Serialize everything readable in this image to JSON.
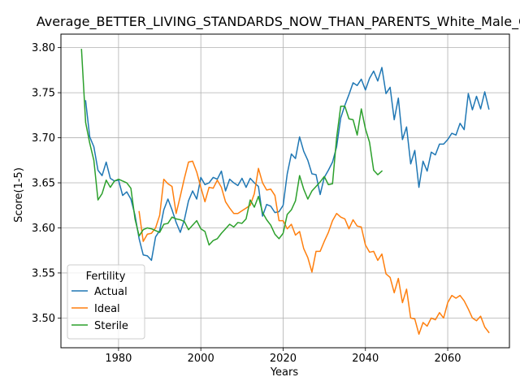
{
  "chart_data": {
    "type": "line",
    "title": "Average_BETTER_LIVING_STANDARDS_NOW_THAN_PARENTS_White_Male_C",
    "xlabel": "Years",
    "ylabel": "Score(1-5)",
    "xlim": [
      1966,
      2075
    ],
    "ylim": [
      3.467,
      3.815
    ],
    "x_ticks": [
      1980,
      2000,
      2020,
      2040,
      2060
    ],
    "x_tick_labels": [
      "1980",
      "2000",
      "2020",
      "2040",
      "2060"
    ],
    "y_ticks": [
      3.5,
      3.55,
      3.6,
      3.65,
      3.7,
      3.75,
      3.8
    ],
    "y_tick_labels": [
      "3.50",
      "3.55",
      "3.60",
      "3.65",
      "3.70",
      "3.75",
      "3.80"
    ],
    "grid": true,
    "legend": {
      "title": "Fertility",
      "placement": "lower-left"
    },
    "series": [
      {
        "name": "Actual",
        "color": "#1f77b4",
        "x": [
          1972,
          1973,
          1974,
          1975,
          1976,
          1977,
          1978,
          1979,
          1980,
          1981,
          1982,
          1983,
          1984,
          1985,
          1986,
          1987,
          1988,
          1989,
          1990,
          1991,
          1992,
          1993,
          1994,
          1995,
          1996,
          1997,
          1998,
          1999,
          2000,
          2001,
          2002,
          2003,
          2004,
          2005,
          2006,
          2007,
          2008,
          2009,
          2010,
          2011,
          2012,
          2013,
          2014,
          2015,
          2016,
          2017,
          2018,
          2019,
          2020,
          2021,
          2022,
          2023,
          2024,
          2025,
          2026,
          2027,
          2028,
          2029,
          2030,
          2031,
          2032,
          2033,
          2034,
          2035,
          2036,
          2037,
          2038,
          2039,
          2040,
          2041,
          2042,
          2043,
          2044,
          2045,
          2046,
          2047,
          2048,
          2049,
          2050,
          2051,
          2052,
          2053,
          2054,
          2055,
          2056,
          2057,
          2058,
          2059,
          2060,
          2061,
          2062,
          2063,
          2064,
          2065,
          2066,
          2067,
          2068,
          2069,
          2070
        ],
        "values": [
          3.741,
          3.701,
          3.69,
          3.664,
          3.658,
          3.673,
          3.655,
          3.652,
          3.653,
          3.636,
          3.64,
          3.632,
          3.614,
          3.588,
          3.57,
          3.569,
          3.564,
          3.59,
          3.597,
          3.62,
          3.632,
          3.62,
          3.606,
          3.595,
          3.609,
          3.63,
          3.641,
          3.632,
          3.656,
          3.648,
          3.65,
          3.656,
          3.654,
          3.663,
          3.641,
          3.654,
          3.65,
          3.647,
          3.655,
          3.645,
          3.655,
          3.65,
          3.646,
          3.613,
          3.626,
          3.624,
          3.617,
          3.618,
          3.625,
          3.66,
          3.682,
          3.677,
          3.701,
          3.685,
          3.675,
          3.66,
          3.659,
          3.637,
          3.656,
          3.664,
          3.673,
          3.69,
          3.722,
          3.736,
          3.748,
          3.761,
          3.758,
          3.765,
          3.753,
          3.766,
          3.774,
          3.763,
          3.778,
          3.749,
          3.756,
          3.72,
          3.744,
          3.698,
          3.712,
          3.671,
          3.686,
          3.645,
          3.674,
          3.663,
          3.684,
          3.681,
          3.693,
          3.693,
          3.698,
          3.705,
          3.703,
          3.716,
          3.709,
          3.749,
          3.731,
          3.746,
          3.732,
          3.751,
          3.732
        ]
      },
      {
        "name": "Ideal",
        "color": "#ff7f0e",
        "x": [
          1985,
          1986,
          1987,
          1988,
          1989,
          1990,
          1991,
          1992,
          1993,
          1994,
          1995,
          1996,
          1997,
          1998,
          1999,
          2000,
          2001,
          2002,
          2003,
          2004,
          2005,
          2006,
          2007,
          2008,
          2009,
          2010,
          2011,
          2012,
          2013,
          2014,
          2015,
          2016,
          2017,
          2018,
          2019,
          2020,
          2021,
          2022,
          2023,
          2024,
          2025,
          2026,
          2027,
          2028,
          2029,
          2030,
          2031,
          2032,
          2033,
          2034,
          2035,
          2036,
          2037,
          2038,
          2039,
          2040,
          2041,
          2042,
          2043,
          2044,
          2045,
          2046,
          2047,
          2048,
          2049,
          2050,
          2051,
          2052,
          2053,
          2054,
          2055,
          2056,
          2057,
          2058,
          2059,
          2060,
          2061,
          2062,
          2063,
          2064,
          2065,
          2066,
          2067,
          2068,
          2069,
          2070
        ],
        "values": [
          3.618,
          3.585,
          3.593,
          3.594,
          3.6,
          3.614,
          3.654,
          3.649,
          3.646,
          3.616,
          3.635,
          3.655,
          3.673,
          3.674,
          3.662,
          3.645,
          3.629,
          3.645,
          3.644,
          3.653,
          3.645,
          3.629,
          3.622,
          3.616,
          3.616,
          3.619,
          3.622,
          3.625,
          3.638,
          3.666,
          3.65,
          3.642,
          3.643,
          3.636,
          3.608,
          3.608,
          3.599,
          3.604,
          3.592,
          3.596,
          3.577,
          3.567,
          3.551,
          3.574,
          3.574,
          3.585,
          3.595,
          3.608,
          3.616,
          3.612,
          3.61,
          3.599,
          3.609,
          3.602,
          3.601,
          3.581,
          3.573,
          3.574,
          3.564,
          3.571,
          3.549,
          3.545,
          3.528,
          3.544,
          3.517,
          3.532,
          3.5,
          3.499,
          3.482,
          3.495,
          3.491,
          3.5,
          3.498,
          3.506,
          3.5,
          3.517,
          3.525,
          3.522,
          3.525,
          3.519,
          3.51,
          3.5,
          3.497,
          3.502,
          3.49,
          3.484
        ]
      },
      {
        "name": "Sterile",
        "color": "#2ca02c",
        "x": [
          1971,
          1972,
          1973,
          1974,
          1975,
          1976,
          1977,
          1978,
          1979,
          1980,
          1981,
          1982,
          1983,
          1984,
          1985,
          1986,
          1987,
          1988,
          1989,
          1990,
          1991,
          1992,
          1993,
          1994,
          1995,
          1996,
          1997,
          1998,
          1999,
          2000,
          2001,
          2002,
          2003,
          2004,
          2005,
          2006,
          2007,
          2008,
          2009,
          2010,
          2011,
          2012,
          2013,
          2014,
          2015,
          2016,
          2017,
          2018,
          2019,
          2020,
          2021,
          2022,
          2023,
          2024,
          2025,
          2026,
          2027,
          2028,
          2029,
          2030,
          2031,
          2032,
          2033,
          2034,
          2035,
          2036,
          2037,
          2038,
          2039,
          2040,
          2041,
          2042,
          2043,
          2044
        ],
        "values": [
          3.798,
          3.717,
          3.694,
          3.675,
          3.631,
          3.638,
          3.653,
          3.645,
          3.652,
          3.654,
          3.652,
          3.65,
          3.644,
          3.61,
          3.591,
          3.598,
          3.6,
          3.599,
          3.597,
          3.595,
          3.604,
          3.605,
          3.612,
          3.61,
          3.609,
          3.607,
          3.598,
          3.603,
          3.608,
          3.599,
          3.596,
          3.581,
          3.586,
          3.588,
          3.594,
          3.599,
          3.604,
          3.601,
          3.606,
          3.605,
          3.61,
          3.631,
          3.623,
          3.635,
          3.617,
          3.609,
          3.603,
          3.593,
          3.588,
          3.594,
          3.615,
          3.62,
          3.63,
          3.658,
          3.643,
          3.632,
          3.641,
          3.646,
          3.651,
          3.657,
          3.648,
          3.649,
          3.7,
          3.735,
          3.735,
          3.721,
          3.72,
          3.703,
          3.732,
          3.71,
          3.695,
          3.664,
          3.659,
          3.663
        ]
      }
    ]
  }
}
